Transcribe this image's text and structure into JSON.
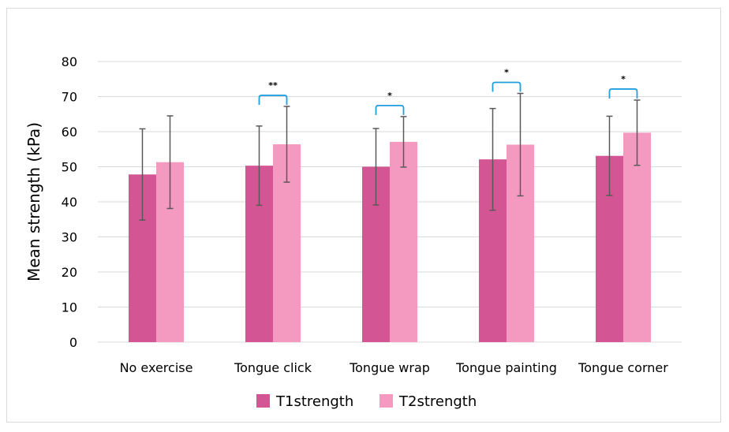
{
  "chart_data": {
    "type": "bar",
    "title": "",
    "xlabel": "",
    "ylabel": "Mean strength (kPa)",
    "ylim": [
      0,
      80
    ],
    "yticks": [
      0,
      10,
      20,
      30,
      40,
      50,
      60,
      70,
      80
    ],
    "grid": true,
    "legend_position": "bottom",
    "categories": [
      "No exercise",
      "Tongue click",
      "Tongue wrap",
      "Tongue painting",
      "Tongue corner"
    ],
    "series": [
      {
        "name": "T1strength",
        "color": "#d45593",
        "values": [
          47.8,
          50.3,
          50.0,
          52.1,
          53.1
        ],
        "error": [
          13.0,
          11.3,
          10.9,
          14.5,
          11.3
        ]
      },
      {
        "name": "T2strength",
        "color": "#f49ac1",
        "values": [
          51.3,
          56.4,
          57.1,
          56.3,
          59.7
        ],
        "error": [
          13.2,
          10.8,
          7.2,
          14.6,
          9.3
        ]
      }
    ],
    "significance": [
      "",
      "**",
      "*",
      "*",
      "*"
    ],
    "bracket_color": "#1f9ee0",
    "gridline_color": "#d9d9d9",
    "error_bar_color": "#595959"
  }
}
